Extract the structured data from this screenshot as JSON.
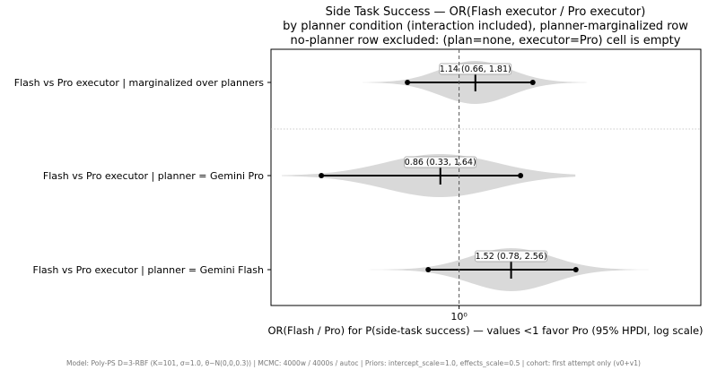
{
  "chart_data": {
    "type": "forest",
    "title": [
      "Side Task Success — OR(Flash executor / Pro executor)",
      "by planner condition (interaction included), planner-marginalized row",
      "no-planner row excluded: (plan=none, executor=Pro) cell is empty"
    ],
    "xlabel": "OR(Flash / Pro) for P(side-task success)  —  values <1 favor Pro  (95% HPDI, log scale)",
    "xscale": "log",
    "xlim": [
      0.22,
      7.0
    ],
    "reference_line": 1.0,
    "xtick_label": "10⁰",
    "rows": [
      {
        "label": "Flash vs Pro executor  |  marginalized over planners",
        "median": 1.14,
        "low": 0.66,
        "high": 1.81,
        "annotation": "1.14 (0.66, 1.81)",
        "violin": {
          "extent_low": 0.46,
          "extent_high": 2.8
        }
      },
      {
        "label": "Flash vs Pro executor  |  planner = Gemini Pro",
        "median": 0.86,
        "low": 0.33,
        "high": 1.64,
        "annotation": "0.86 (0.33, 1.64)",
        "violin": {
          "extent_low": 0.24,
          "extent_high": 2.55
        }
      },
      {
        "label": "Flash vs Pro executor  |  planner = Gemini Flash",
        "median": 1.52,
        "low": 0.78,
        "high": 2.56,
        "annotation": "1.52 (0.78, 2.56)",
        "violin": {
          "extent_low": 0.46,
          "extent_high": 4.6
        }
      }
    ],
    "colors": {
      "violin": "#d9d9d9",
      "interval": "#000000",
      "reference": "#555555",
      "separator": "#bbbbbb"
    },
    "footer": "Model: Poly-PS D=3-RBF (K=101, σ=1.0, θ~N(0,0,0.3)) | MCMC: 4000w / 4000s / autoc | Priors: intercept_scale=1.0, effects_scale=0.5 | cohort: first attempt only (v0+v1)"
  }
}
